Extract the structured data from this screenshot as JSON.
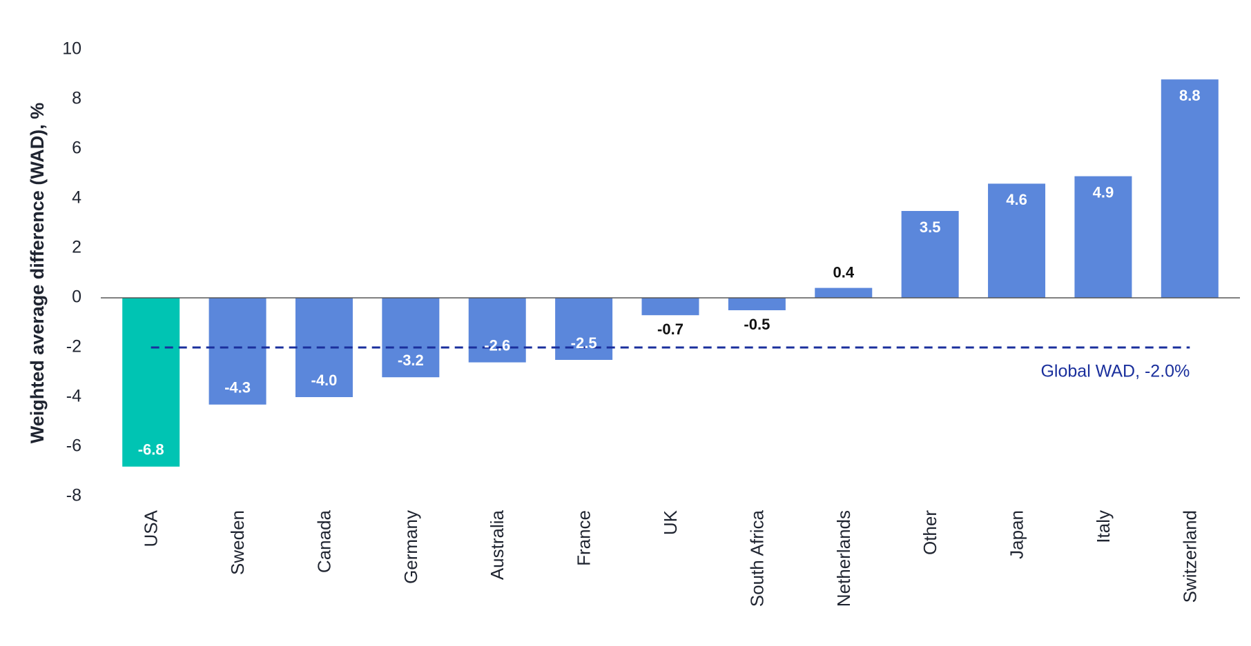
{
  "chart_data": {
    "type": "bar",
    "title": "",
    "xlabel": "",
    "ylabel": "Weighted average difference (WAD), %",
    "ylim": [
      -8,
      10
    ],
    "yticks": [
      10,
      8,
      6,
      4,
      2,
      0,
      -2,
      -4,
      -6,
      -8
    ],
    "grid": false,
    "categories": [
      "USA",
      "Sweden",
      "Canada",
      "Germany",
      "Australia",
      "France",
      "UK",
      "South Africa",
      "Netherlands",
      "Other",
      "Japan",
      "Italy",
      "Switzerland"
    ],
    "values": [
      -6.8,
      -4.3,
      -4.0,
      -3.2,
      -2.6,
      -2.5,
      -0.7,
      -0.5,
      0.4,
      3.5,
      4.6,
      4.9,
      8.8
    ],
    "data_labels": [
      "-6.8",
      "-4.3",
      "-4.0",
      "-3.2",
      "-2.6",
      "-2.5",
      "-0.7",
      "-0.5",
      "0.4",
      "3.5",
      "4.6",
      "4.9",
      "8.8"
    ],
    "highlight_category": "USA",
    "reference_line": {
      "value": -2.0,
      "label": "Global WAD, -2.0%",
      "style": "dashed"
    },
    "colors": {
      "bar": "#5b87db",
      "highlight": "#00c4b3",
      "reference": "#1a2f9c",
      "label_inside": "#ffffff",
      "label_outside": "#111111",
      "axis": "#555555"
    }
  }
}
